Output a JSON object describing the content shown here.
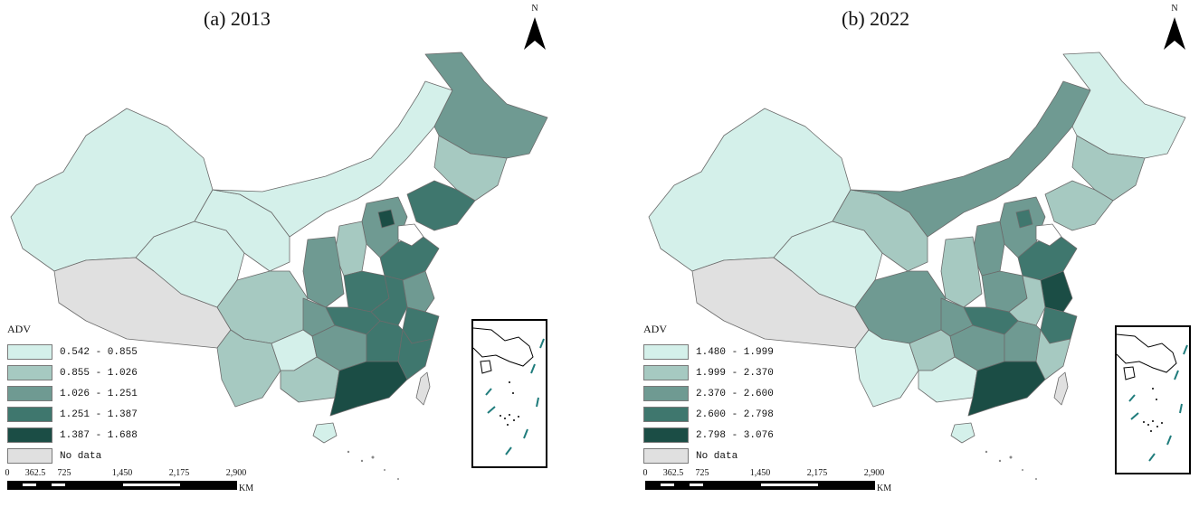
{
  "panels": [
    {
      "title": "(a) 2013",
      "legend": {
        "title": "ADV",
        "items": [
          {
            "label": "0.542 - 0.855",
            "color": "#d4f0ea"
          },
          {
            "label": "0.855 - 1.026",
            "color": "#a6c9c1"
          },
          {
            "label": "1.026 - 1.251",
            "color": "#6f9a92"
          },
          {
            "label": "1.251 - 1.387",
            "color": "#3f776e"
          },
          {
            "label": "1.387 - 1.688",
            "color": "#1b4d45"
          },
          {
            "label": "No data",
            "color": "#e0e0e0"
          }
        ]
      }
    },
    {
      "title": "(b) 2022",
      "legend": {
        "title": "ADV",
        "items": [
          {
            "label": "1.480 - 1.999",
            "color": "#d4f0ea"
          },
          {
            "label": "1.999 - 2.370",
            "color": "#a6c9c1"
          },
          {
            "label": "2.370 - 2.600",
            "color": "#6f9a92"
          },
          {
            "label": "2.600 - 2.798",
            "color": "#3f776e"
          },
          {
            "label": "2.798 - 3.076",
            "color": "#1b4d45"
          },
          {
            "label": "No data",
            "color": "#e0e0e0"
          }
        ]
      }
    }
  ],
  "north_label": "N",
  "scale": {
    "ticks": [
      "0",
      "362.5",
      "725",
      "1,450",
      "2,175",
      "2,900"
    ],
    "unit": "KM"
  }
}
